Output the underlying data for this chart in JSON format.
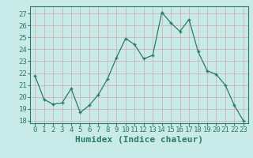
{
  "x": [
    0,
    1,
    2,
    3,
    4,
    5,
    6,
    7,
    8,
    9,
    10,
    11,
    12,
    13,
    14,
    15,
    16,
    17,
    18,
    19,
    20,
    21,
    22,
    23
  ],
  "y": [
    21.8,
    19.8,
    19.4,
    19.5,
    20.7,
    18.7,
    19.3,
    20.2,
    21.5,
    23.3,
    24.9,
    24.4,
    23.2,
    23.5,
    27.1,
    26.2,
    25.5,
    26.5,
    23.8,
    22.2,
    21.9,
    21.0,
    19.3,
    18.0
  ],
  "xlim": [
    -0.5,
    23.5
  ],
  "ylim": [
    17.8,
    27.6
  ],
  "yticks": [
    18,
    19,
    20,
    21,
    22,
    23,
    24,
    25,
    26,
    27
  ],
  "xticks": [
    0,
    1,
    2,
    3,
    4,
    5,
    6,
    7,
    8,
    9,
    10,
    11,
    12,
    13,
    14,
    15,
    16,
    17,
    18,
    19,
    20,
    21,
    22,
    23
  ],
  "xlabel": "Humidex (Indice chaleur)",
  "line_color": "#2d7a68",
  "marker": "+",
  "bg_color": "#c8eae8",
  "grid_major_color": "#e8c8c8",
  "grid_minor_color": "#e8c8c8",
  "tick_label_fontsize": 6.5,
  "xlabel_fontsize": 8,
  "title": ""
}
